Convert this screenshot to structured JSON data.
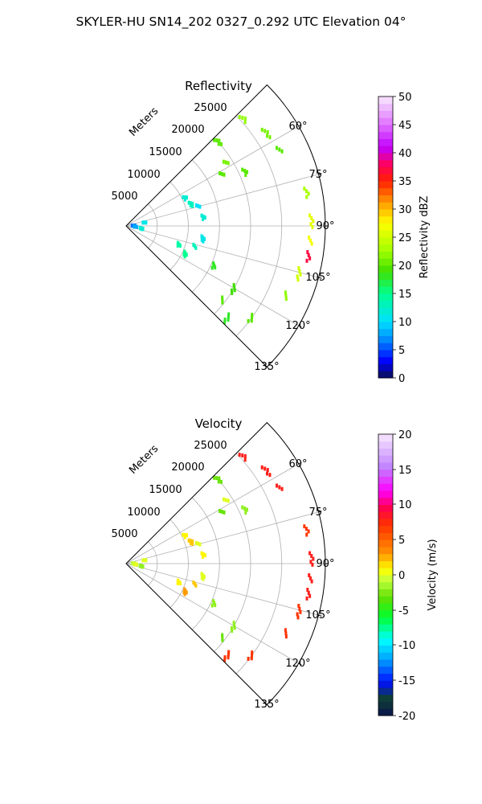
{
  "figure": {
    "suptitle": "SKYLER-HU  SN14_202  0327_0.292 UTC Elevation 04°"
  },
  "panels": {
    "reflectivity": {
      "title": "Reflectivity",
      "range_label": "Meters",
      "range_ticks": [
        "5000",
        "10000",
        "15000",
        "20000",
        "25000"
      ],
      "azimuth_ticks": [
        "60°",
        "75°",
        "90°",
        "105°",
        "120°",
        "135°"
      ],
      "colorbar": {
        "label": "Reflectivity dBZ",
        "ticks": [
          "0",
          "5",
          "10",
          "15",
          "20",
          "25",
          "30",
          "35",
          "40",
          "45",
          "50"
        ]
      }
    },
    "velocity": {
      "title": "Velocity",
      "range_label": "Meters",
      "range_ticks": [
        "5000",
        "10000",
        "15000",
        "20000",
        "25000"
      ],
      "azimuth_ticks": [
        "60°",
        "75°",
        "90°",
        "105°",
        "120°",
        "135°"
      ],
      "colorbar": {
        "label": "Velocity (m/s)",
        "ticks": [
          "-20",
          "-15",
          "-10",
          "-5",
          "0",
          "5",
          "10",
          "15",
          "20"
        ]
      }
    }
  },
  "chart_data": [
    {
      "type": "heatmap",
      "projection": "polar sector",
      "title": "Reflectivity",
      "theta_range_deg": [
        45,
        135
      ],
      "theta_ticks_deg": [
        60,
        75,
        90,
        105,
        120,
        135
      ],
      "r_range_m": [
        0,
        32000
      ],
      "r_ticks_m": [
        5000,
        10000,
        15000,
        20000,
        25000
      ],
      "r_label": "Meters",
      "colorbar": {
        "label": "Reflectivity dBZ",
        "min": 0,
        "max": 50
      },
      "grid": true,
      "echoes": [
        {
          "az": 88,
          "r_m": 1200,
          "value": 6
        },
        {
          "az": 95,
          "r_m": 1500,
          "value": 8
        },
        {
          "az": 100,
          "r_m": 2500,
          "value": 12
        },
        {
          "az": 80,
          "r_m": 3000,
          "value": 11
        },
        {
          "az": 65,
          "r_m": 10500,
          "value": 12
        },
        {
          "az": 72,
          "r_m": 11000,
          "value": 13
        },
        {
          "az": 75,
          "r_m": 12000,
          "value": 10
        },
        {
          "az": 84,
          "r_m": 12500,
          "value": 12
        },
        {
          "az": 100,
          "r_m": 12500,
          "value": 11
        },
        {
          "az": 107,
          "r_m": 11500,
          "value": 13
        },
        {
          "az": 110,
          "r_m": 9000,
          "value": 14
        },
        {
          "az": 116,
          "r_m": 10500,
          "value": 15
        },
        {
          "az": 62,
          "r_m": 17500,
          "value": 20
        },
        {
          "az": 115,
          "r_m": 15500,
          "value": 18
        },
        {
          "az": 48,
          "r_m": 20000,
          "value": 20
        },
        {
          "az": 58,
          "r_m": 19000,
          "value": 21
        },
        {
          "az": 66,
          "r_m": 21000,
          "value": 20
        },
        {
          "az": 121,
          "r_m": 20000,
          "value": 19
        },
        {
          "az": 128,
          "r_m": 19500,
          "value": 20
        },
        {
          "az": 48,
          "r_m": 25500,
          "value": 22
        },
        {
          "az": 57,
          "r_m": 27000,
          "value": 21
        },
        {
          "az": 64,
          "r_m": 27500,
          "value": 20
        },
        {
          "az": 80,
          "r_m": 29500,
          "value": 23
        },
        {
          "az": 89,
          "r_m": 29800,
          "value": 26
        },
        {
          "az": 95,
          "r_m": 29700,
          "value": 27
        },
        {
          "az": 100,
          "r_m": 29700,
          "value": 37
        },
        {
          "az": 106,
          "r_m": 28800,
          "value": 25
        },
        {
          "az": 114,
          "r_m": 28000,
          "value": 22
        },
        {
          "az": 127,
          "r_m": 25000,
          "value": 20
        },
        {
          "az": 133,
          "r_m": 22000,
          "value": 18
        }
      ]
    },
    {
      "type": "heatmap",
      "projection": "polar sector",
      "title": "Velocity",
      "theta_range_deg": [
        45,
        135
      ],
      "theta_ticks_deg": [
        60,
        75,
        90,
        105,
        120,
        135
      ],
      "r_range_m": [
        0,
        32000
      ],
      "r_ticks_m": [
        5000,
        10000,
        15000,
        20000,
        25000
      ],
      "r_label": "Meters",
      "colorbar": {
        "label": "Velocity (m/s)",
        "min": -20,
        "max": 20
      },
      "grid": true,
      "echoes": [
        {
          "az": 88,
          "r_m": 1200,
          "value": -1
        },
        {
          "az": 95,
          "r_m": 1500,
          "value": 0
        },
        {
          "az": 100,
          "r_m": 2500,
          "value": -2
        },
        {
          "az": 80,
          "r_m": 3000,
          "value": 0
        },
        {
          "az": 65,
          "r_m": 10500,
          "value": 1
        },
        {
          "az": 72,
          "r_m": 11000,
          "value": 2
        },
        {
          "az": 75,
          "r_m": 12000,
          "value": 0
        },
        {
          "az": 84,
          "r_m": 12500,
          "value": 1
        },
        {
          "az": 100,
          "r_m": 12500,
          "value": 0
        },
        {
          "az": 107,
          "r_m": 11500,
          "value": 2
        },
        {
          "az": 110,
          "r_m": 9000,
          "value": 1
        },
        {
          "az": 116,
          "r_m": 10500,
          "value": 3
        },
        {
          "az": 62,
          "r_m": 17500,
          "value": -3
        },
        {
          "az": 115,
          "r_m": 15500,
          "value": -2
        },
        {
          "az": 48,
          "r_m": 20000,
          "value": -3
        },
        {
          "az": 58,
          "r_m": 19000,
          "value": 0
        },
        {
          "az": 66,
          "r_m": 21000,
          "value": -2
        },
        {
          "az": 121,
          "r_m": 20000,
          "value": -2
        },
        {
          "az": 128,
          "r_m": 19500,
          "value": -3
        },
        {
          "az": 48,
          "r_m": 25500,
          "value": 8
        },
        {
          "az": 57,
          "r_m": 27000,
          "value": 8
        },
        {
          "az": 64,
          "r_m": 27500,
          "value": 8
        },
        {
          "az": 80,
          "r_m": 29500,
          "value": 7
        },
        {
          "az": 89,
          "r_m": 29800,
          "value": 8
        },
        {
          "az": 95,
          "r_m": 29700,
          "value": 8
        },
        {
          "az": 100,
          "r_m": 29700,
          "value": 8
        },
        {
          "az": 106,
          "r_m": 28800,
          "value": 7
        },
        {
          "az": 114,
          "r_m": 28000,
          "value": 7
        },
        {
          "az": 127,
          "r_m": 25000,
          "value": 7
        },
        {
          "az": 133,
          "r_m": 22000,
          "value": 7
        }
      ]
    }
  ]
}
